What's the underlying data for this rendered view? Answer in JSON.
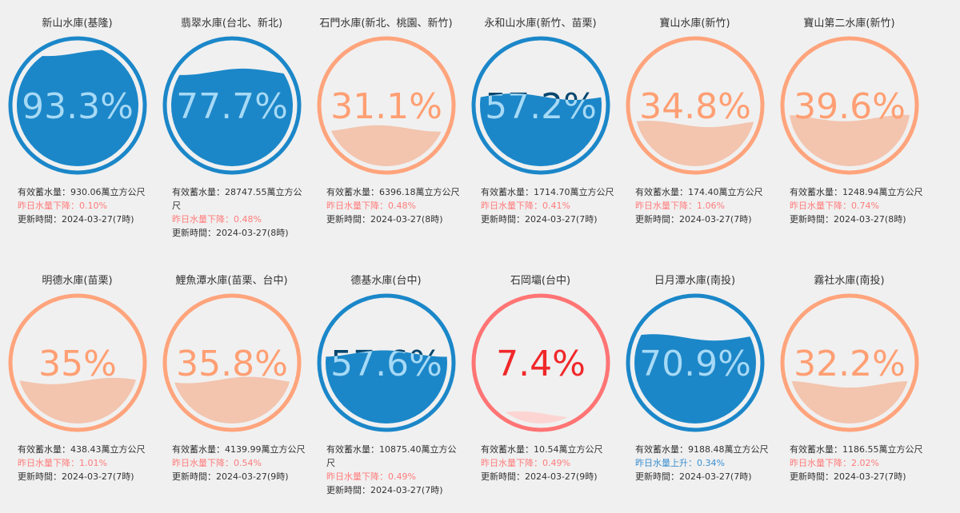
{
  "reservoirs": [
    {
      "name": "新山水庫(基隆)",
      "percent": 93.3,
      "percent_label": "93.3%",
      "storage": "有效蓄水量：930.06萬立方公尺",
      "change": "昨日水量下降：0.10%",
      "updated": "更新時間：2024-03-27(7時)",
      "ring_color": "#1b87c9",
      "water_color": "#1b87c9",
      "text_color": "#06466e",
      "water_text_color": "#a5daf7",
      "change_color": "#ff7b7b"
    },
    {
      "name": "翡翠水庫(台北、新北)",
      "percent": 77.7,
      "percent_label": "77.7%",
      "storage": "有效蓄水量：28747.55萬立方公尺",
      "change": "昨日水量下降：0.48%",
      "updated": "更新時間：2024-03-27(8時)",
      "ring_color": "#1b87c9",
      "water_color": "#1b87c9",
      "text_color": "#06466e",
      "water_text_color": "#a5daf7",
      "change_color": "#ff7b7b"
    },
    {
      "name": "石門水庫(新北、桃園、新竹)",
      "percent": 31.1,
      "percent_label": "31.1%",
      "storage": "有效蓄水量：6396.18萬立方公尺",
      "change": "昨日水量下降：0.48%",
      "updated": "更新時間：2024-03-27(8時)",
      "ring_color": "#ffa47c",
      "water_color": "#f3c4ae",
      "text_color": "#ff9f73",
      "water_text_color": "#ff9f73",
      "change_color": "#ff7b7b"
    },
    {
      "name": "永和山水庫(新竹、苗栗)",
      "percent": 57.2,
      "percent_label": "57.2%",
      "storage": "有效蓄水量：1714.70萬立方公尺",
      "change": "昨日水量下降：0.41%",
      "updated": "更新時間：2024-03-27(7時)",
      "ring_color": "#1b87c9",
      "water_color": "#1b87c9",
      "text_color": "#06466e",
      "water_text_color": "#a5daf7",
      "change_color": "#ff7b7b"
    },
    {
      "name": "寶山水庫(新竹)",
      "percent": 34.8,
      "percent_label": "34.8%",
      "storage": "有效蓄水量：174.40萬立方公尺",
      "change": "昨日水量下降：1.06%",
      "updated": "更新時間：2024-03-27(7時)",
      "ring_color": "#ffa47c",
      "water_color": "#f3c4ae",
      "text_color": "#ff9f73",
      "water_text_color": "#ff9f73",
      "change_color": "#ff7b7b"
    },
    {
      "name": "寶山第二水庫(新竹)",
      "percent": 39.6,
      "percent_label": "39.6%",
      "storage": "有效蓄水量：1248.94萬立方公尺",
      "change": "昨日水量下降：0.74%",
      "updated": "更新時間：2024-03-27(8時)",
      "ring_color": "#ffa47c",
      "water_color": "#f3c4ae",
      "text_color": "#ff9f73",
      "water_text_color": "#ff9f73",
      "change_color": "#ff7b7b"
    },
    {
      "name": "明德水庫(苗栗)",
      "percent": 35,
      "percent_label": "35%",
      "storage": "有效蓄水量：438.43萬立方公尺",
      "change": "昨日水量下降：1.01%",
      "updated": "更新時間：2024-03-27(7時)",
      "ring_color": "#ffa47c",
      "water_color": "#f3c4ae",
      "text_color": "#ff9f73",
      "water_text_color": "#ff9f73",
      "change_color": "#ff7b7b"
    },
    {
      "name": "鯉魚潭水庫(苗栗、台中)",
      "percent": 35.8,
      "percent_label": "35.8%",
      "storage": "有效蓄水量：4139.99萬立方公尺",
      "change": "昨日水量下降：0.54%",
      "updated": "更新時間：2024-03-27(9時)",
      "ring_color": "#ffa47c",
      "water_color": "#f3c4ae",
      "text_color": "#ff9f73",
      "water_text_color": "#ff9f73",
      "change_color": "#ff7b7b"
    },
    {
      "name": "德基水庫(台中)",
      "percent": 57.6,
      "percent_label": "57.6%",
      "storage": "有效蓄水量：10875.40萬立方公尺",
      "change": "昨日水量下降：0.49%",
      "updated": "更新時間：2024-03-27(7時)",
      "ring_color": "#1b87c9",
      "water_color": "#1b87c9",
      "text_color": "#06466e",
      "water_text_color": "#a5daf7",
      "change_color": "#ff7b7b"
    },
    {
      "name": "石岡壩(台中)",
      "percent": 7.4,
      "percent_label": "7.4%",
      "storage": "有效蓄水量：10.54萬立方公尺",
      "change": "昨日水量下降：0.49%",
      "updated": "更新時間：2024-03-27(9時)",
      "ring_color": "#ff7474",
      "water_color": "#fcd5d2",
      "text_color": "#f0282a",
      "water_text_color": "#f0282a",
      "change_color": "#ff7b7b"
    },
    {
      "name": "日月潭水庫(南投)",
      "percent": 70.9,
      "percent_label": "70.9%",
      "storage": "有效蓄水量：9188.48萬立方公尺",
      "change": "昨日水量上升：0.34%",
      "updated": "更新時間：2024-03-27(7時)",
      "ring_color": "#1b87c9",
      "water_color": "#1b87c9",
      "text_color": "#06466e",
      "water_text_color": "#a5daf7",
      "change_color": "#3a8fd0"
    },
    {
      "name": "霧社水庫(南投)",
      "percent": 32.2,
      "percent_label": "32.2%",
      "storage": "有效蓄水量：1186.55萬立方公尺",
      "change": "昨日水量下降：2.02%",
      "updated": "更新時間：2024-03-27(7時)",
      "ring_color": "#ffa47c",
      "water_color": "#f3c4ae",
      "text_color": "#ff9f73",
      "water_text_color": "#ff9f73",
      "change_color": "#ff7b7b"
    }
  ]
}
